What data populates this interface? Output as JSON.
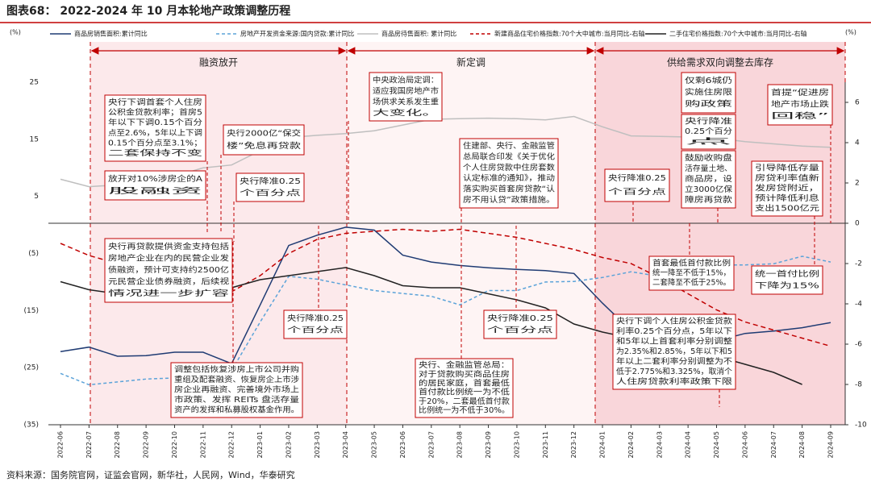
{
  "chart_data": {
    "type": "line",
    "title": "图表68：  2022-2024 年 10 月本轮地产政策调整历程",
    "source": "资料来源：国务院官网，证监会官网，新华社，人民网，Wind，华泰研究",
    "y_label": "(%)",
    "y2_label": "(%)",
    "categories": [
      "2022-06",
      "2022-07",
      "2022-08",
      "2022-09",
      "2022-10",
      "2022-11",
      "2022-12",
      "2023-01",
      "2023-02",
      "2023-03",
      "2023-04",
      "2023-05",
      "2023-06",
      "2023-07",
      "2023-08",
      "2023-09",
      "2023-10",
      "2023-11",
      "2023-12",
      "2024-01",
      "2024-02",
      "2024-03",
      "2024-04",
      "2024-05",
      "2024-06",
      "2024-07",
      "2024-08",
      "2024-09"
    ],
    "ylim": [
      -35,
      25
    ],
    "yticks": [
      25,
      15,
      5,
      {
        "value": -5,
        "label": "(5)"
      },
      {
        "value": -15,
        "label": "(15)"
      },
      {
        "value": -25,
        "label": "(25)"
      },
      {
        "value": -35,
        "label": "(35)"
      }
    ],
    "y2lim": [
      -10,
      7
    ],
    "y2ticks": [
      6,
      4,
      2,
      0,
      -2,
      -4,
      -6,
      -8,
      -10
    ],
    "series": [
      {
        "name": "商品房销售面积:累计同比",
        "color": "#1f3b73",
        "style": "solid",
        "values": [
          -22.2,
          -21.4,
          -23.0,
          -22.9,
          -22.3,
          -22.3,
          -24.3,
          -14,
          -3.6,
          -1.8,
          -0.4,
          -0.9,
          -5.3,
          -6.5,
          -7.1,
          -7.5,
          -7.8,
          -8.0,
          -8.5,
          -13.7,
          -18.5,
          -19.4,
          -20.2,
          -20.3,
          -19.0,
          -18.6,
          -18.0,
          -17.1
        ]
      },
      {
        "name": "房地产开发资金来源:国内贷款:累计同比",
        "color": "#5ba3d9",
        "style": "dashed",
        "values": [
          -26.0,
          -28.0,
          -27.5,
          -27.0,
          -26.8,
          -26.0,
          -25.5,
          -17,
          -9.0,
          -9.5,
          -10.5,
          -11.5,
          -12.0,
          -12.5,
          -14.0,
          -11.5,
          -11.5,
          -10.0,
          -9.9,
          -9.2,
          -8.2,
          -9.0,
          -8.5,
          -7.0,
          -7.0,
          -6.8,
          -5.5,
          -6.5
        ]
      },
      {
        "name": "商品房待售面积: 累计同比",
        "color": "#bfbfbf",
        "style": "solid",
        "values": [
          8.0,
          6.7,
          7.0,
          7.5,
          8.5,
          10.0,
          10.5,
          13.0,
          15.3,
          15.7,
          16.0,
          16.5,
          17.5,
          18.5,
          18.6,
          18.7,
          18.6,
          18.4,
          19.0,
          17.2,
          15.6,
          15.5,
          15.4,
          15.2,
          14.6,
          14.2,
          13.8,
          13.6
        ]
      },
      {
        "name": "新建商品住宅价格指数:70个大中城市:当月同比-右轴",
        "color": "#c00000",
        "style": "dashed",
        "axis": "y2",
        "values": [
          -1.0,
          -1.6,
          -2.0,
          -2.4,
          -2.8,
          -3.1,
          -3.4,
          -2.6,
          -1.5,
          -0.8,
          -0.5,
          -0.4,
          -0.3,
          -0.4,
          -0.3,
          -0.5,
          -0.7,
          -1.0,
          -1.3,
          -1.7,
          -2.0,
          -2.7,
          -3.5,
          -4.3,
          -4.9,
          -5.3,
          -5.7,
          -6.1
        ]
      },
      {
        "name": "二手住宅价格指数:70个大中城市:当月同比-右轴",
        "color": "#222222",
        "style": "solid",
        "axis": "y2",
        "values": [
          -2.9,
          -3.3,
          -3.5,
          -3.6,
          -3.7,
          -3.8,
          -3.2,
          -2.8,
          -2.6,
          -2.4,
          -2.2,
          -2.6,
          -3.1,
          -3.2,
          -3.2,
          -3.5,
          -3.8,
          -4.2,
          -5.0,
          -5.4,
          -5.7,
          -6.0,
          -6.3,
          -6.6,
          -7.0,
          -7.4,
          -8.0,
          null
        ]
      }
    ],
    "phases": [
      "融资放开",
      "新定调",
      "供给需求双向调整去库存"
    ],
    "annotations": [
      [
        "央行下调首套个人住房",
        "公积金贷款利率；首房5",
        "年以下下调0.15个百分",
        "点至2.6%，5年以上下调",
        "0.15个百分点至3.1%；",
        "二套保持不变"
      ],
      [
        "放开对10%涉房企的A",
        "股融资"
      ],
      [
        "央行2000亿“保交",
        "楼”免息再贷款"
      ],
      [
        "央行降准0.25",
        "个百分点"
      ],
      [
        "中央政治局定调：",
        "适应我国房地产市",
        "场供求关系发生重",
        "大变化。"
      ],
      [
        "住建部、央行、金融监管",
        "总局联合印发《关于优化",
        "个人住房贷款中住房套数",
        "认定标准的通知》，推动",
        "落实购买首套房贷款“认",
        "房不用认贷”政策措施。"
      ],
      [
        "央行降准0.25",
        "个百分点"
      ],
      [
        "仅剩6城仍",
        "实施住房限",
        "购政策"
      ],
      [
        "央行降准",
        "0.25个百分",
        "点"
      ],
      [
        "鼓励收购盘",
        "活存量土地、",
        "商品房，设",
        "立3000亿保",
        "障房再贷款"
      ],
      [
        "首提“促进房",
        "地产市场止跌",
        "回稳”"
      ],
      [
        "引导降低存量",
        "房贷利率值新",
        "发房贷附近，",
        "预计降低利息",
        "支出1500亿元"
      ],
      [
        "央行再贷款提供资金支持包括",
        "房地产企业在内的民营企业发",
        "债融资，预计可支持约2500亿",
        "元民营企业债券融资，后续视",
        "情况进一步扩容"
      ],
      [
        "调整包括恢复涉房上市公司并购",
        "重组及配套融资、恢复房企上市涉",
        "房企业再融资、完善境外市场上",
        "市政策、发挥 REITs 盘活存量",
        "资产的发挥和私募股权基金作用。"
      ],
      [
        "央行降准0.25",
        "个百分点"
      ],
      [
        "央行降准0.25",
        "个百分点"
      ],
      [
        "央行、金融监管总局：",
        "对于贷款购买商品住房",
        "的居民家庭，首套最低",
        "首付款比例统一为不低",
        "于20%，二套最低首付款",
        "比例统一为不低于30%。"
      ],
      [
        "首套最低首付款比例",
        "统一降至不低于15%，",
        "二套降至不低于25%。"
      ],
      [
        "统一首付比例",
        "下降为15%"
      ],
      [
        "央行下调个人住房公积金贷款",
        "利率0.25个百分点，5年以下",
        "和5年以上首套利率分别调整",
        "为2.35%和2.85%，5年以下和5",
        "年以上二套利率分别调整为不",
        "低于2.775%和3.325%，取消个",
        "人住房贷款利率政策下限"
      ]
    ]
  }
}
